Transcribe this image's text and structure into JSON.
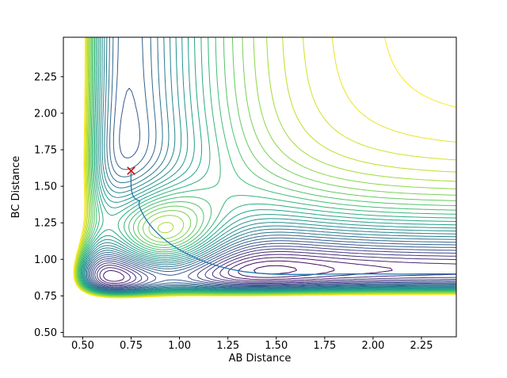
{
  "colors": {
    "background": "#ffffff",
    "axes_frame": "#000000",
    "text": "#000000"
  },
  "chart_data": {
    "type": "contour",
    "xlabel": "AB Distance",
    "ylabel": "BC Distance",
    "x_range": [
      0.4,
      2.43
    ],
    "y_range": [
      0.47,
      2.52
    ],
    "x_ticks": [
      0.5,
      0.75,
      1.0,
      1.25,
      1.5,
      1.75,
      2.0,
      2.25
    ],
    "x_tick_labels": [
      "0.50",
      "0.75",
      "1.00",
      "1.25",
      "1.50",
      "1.75",
      "2.00",
      "2.25"
    ],
    "y_ticks": [
      0.5,
      0.75,
      1.0,
      1.25,
      1.5,
      1.75,
      2.0,
      2.25
    ],
    "y_tick_labels": [
      "0.50",
      "0.75",
      "1.00",
      "1.25",
      "1.50",
      "1.75",
      "2.00",
      "2.25"
    ],
    "grid": false,
    "legend": "none",
    "n_levels": 30,
    "level_lo_offset": 0.08,
    "level_hi": -0.2,
    "colormap": "viridis",
    "viridis_stops": [
      [
        0.0,
        "#440154"
      ],
      [
        0.1,
        "#482475"
      ],
      [
        0.2,
        "#414487"
      ],
      [
        0.3,
        "#355f8d"
      ],
      [
        0.4,
        "#2a788e"
      ],
      [
        0.5,
        "#21918c"
      ],
      [
        0.6,
        "#22a884"
      ],
      [
        0.7,
        "#44bf70"
      ],
      [
        0.8,
        "#7ad151"
      ],
      [
        0.9,
        "#bddf26"
      ],
      [
        1.0,
        "#fde725"
      ]
    ],
    "surface": {
      "description": "potential energy surface V(AB,BC): Morse(AB) + Morse(BC) + corner barrier gaussian",
      "morse_ab": {
        "D": 4.75,
        "a": 3.0,
        "r0": 0.74
      },
      "morse_bc": {
        "D": 6.0,
        "a": 4.0,
        "r0": 0.93
      },
      "bump": {
        "height": 7.0,
        "x": 0.85,
        "y": 1.1,
        "sigma": 0.26
      }
    },
    "start_marker": {
      "symbol": "x",
      "x": 0.75,
      "y": 1.606,
      "color": "#dd0000"
    },
    "trajectory": {
      "color": "#1f77b4",
      "points": [
        [
          0.75,
          1.595
        ],
        [
          0.749,
          1.545
        ],
        [
          0.75,
          1.5
        ],
        [
          0.753,
          1.465
        ],
        [
          0.758,
          1.44
        ],
        [
          0.766,
          1.422
        ],
        [
          0.776,
          1.41
        ],
        [
          0.788,
          1.404
        ],
        [
          0.795,
          1.398
        ],
        [
          0.79,
          1.385
        ],
        [
          0.793,
          1.362
        ],
        [
          0.803,
          1.33
        ],
        [
          0.818,
          1.292
        ],
        [
          0.838,
          1.252
        ],
        [
          0.862,
          1.212
        ],
        [
          0.891,
          1.172
        ],
        [
          0.925,
          1.133
        ],
        [
          0.963,
          1.096
        ],
        [
          1.005,
          1.062
        ],
        [
          1.05,
          1.03
        ],
        [
          1.1,
          1.0
        ],
        [
          1.153,
          0.973
        ],
        [
          1.21,
          0.95
        ],
        [
          1.27,
          0.931
        ],
        [
          1.333,
          0.916
        ],
        [
          1.4,
          0.906
        ],
        [
          1.47,
          0.9
        ],
        [
          1.545,
          0.897
        ],
        [
          1.625,
          0.897
        ],
        [
          1.71,
          0.898
        ],
        [
          1.8,
          0.899
        ],
        [
          1.9,
          0.9
        ],
        [
          2.01,
          0.9
        ],
        [
          2.13,
          0.899
        ],
        [
          2.26,
          0.9
        ],
        [
          2.43,
          0.9
        ]
      ]
    }
  }
}
